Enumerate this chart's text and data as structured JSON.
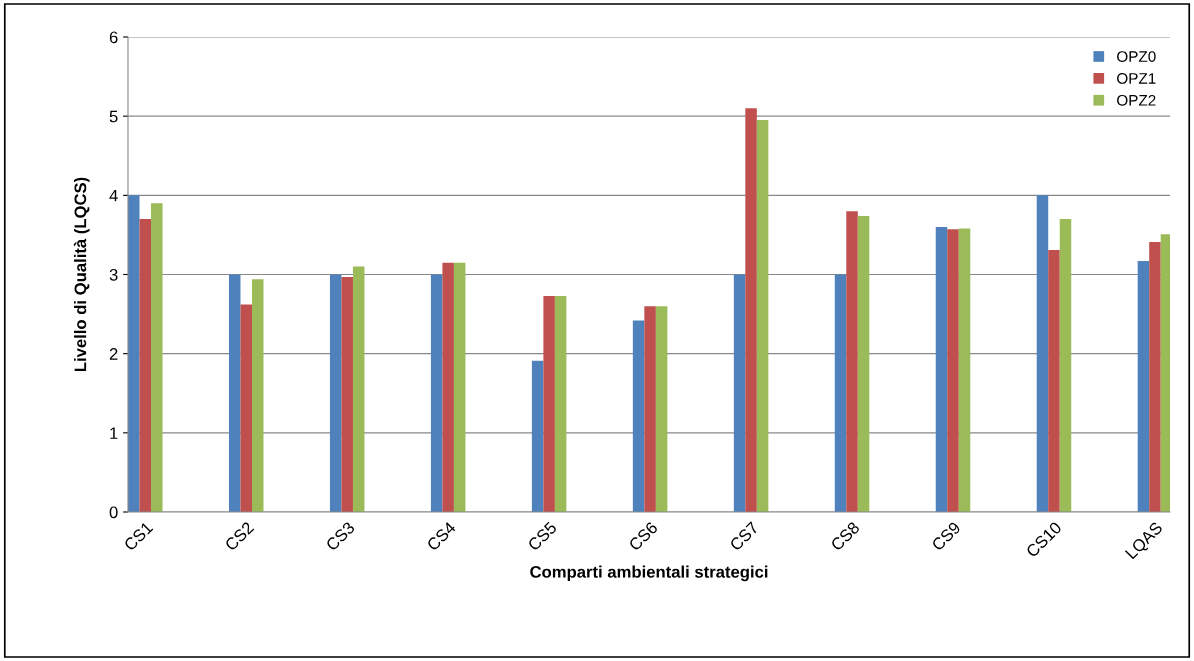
{
  "chart_data": {
    "type": "bar",
    "xlabel": "Comparti ambientali strategici",
    "ylabel": "Livello di Qualità (LQCS)",
    "categories": [
      "CS1",
      "CS2",
      "CS3",
      "CS4",
      "CS5",
      "CS6",
      "CS7",
      "CS8",
      "CS9",
      "CS10",
      "LQAS"
    ],
    "series": [
      {
        "name": "OPZ0",
        "color": "#4f81bd",
        "values": [
          4.0,
          3.0,
          3.0,
          3.0,
          1.91,
          2.42,
          3.0,
          3.0,
          3.6,
          4.0,
          3.17
        ]
      },
      {
        "name": "OPZ1",
        "color": "#c0504d",
        "values": [
          3.7,
          2.62,
          2.97,
          3.15,
          2.73,
          2.6,
          5.1,
          3.8,
          3.57,
          3.31,
          3.41
        ]
      },
      {
        "name": "OPZ2",
        "color": "#9bbb59",
        "values": [
          3.9,
          2.94,
          3.1,
          3.15,
          2.73,
          2.6,
          4.95,
          3.74,
          3.58,
          3.7,
          3.51
        ]
      }
    ],
    "ylim": [
      0,
      6
    ],
    "yticks": [
      0,
      1,
      2,
      3,
      4,
      5,
      6
    ],
    "grid": "y",
    "legend": "top right"
  }
}
